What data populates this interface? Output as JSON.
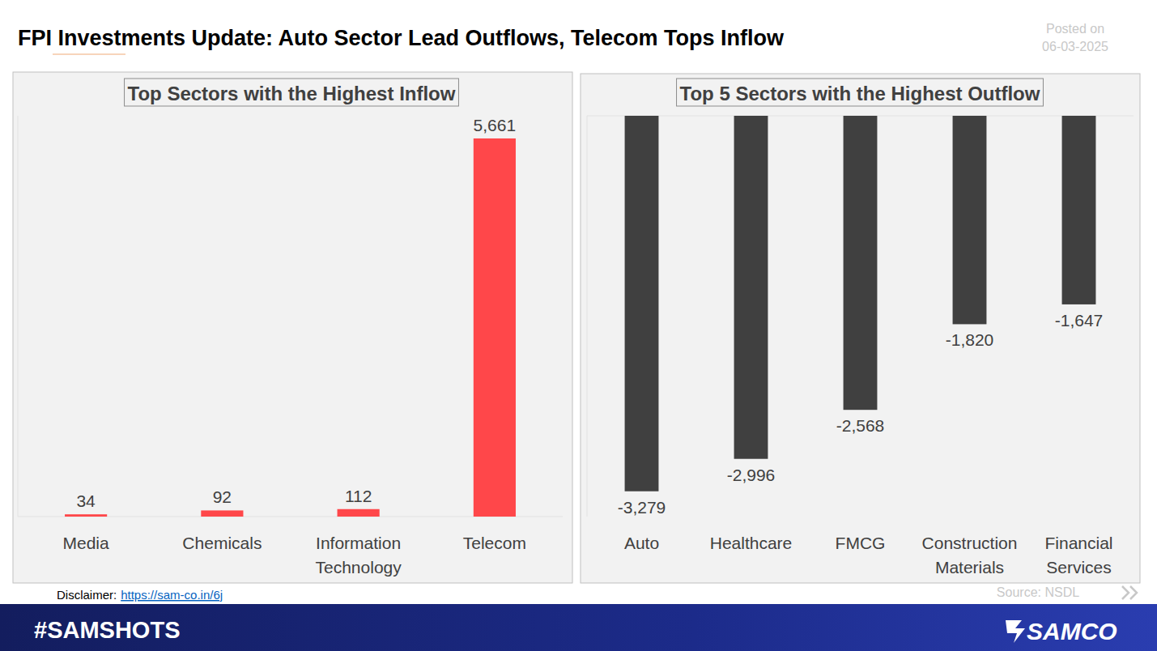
{
  "header": {
    "title": "FPI Investments Update: Auto Sector Lead Outflows, Telecom Tops Inflow",
    "posted_label": "Posted on",
    "posted_date": "06-03-2025"
  },
  "chart_data": [
    {
      "type": "bar",
      "title": "Top Sectors with the Highest Inflow",
      "categories": [
        "Media",
        "Chemicals",
        "Information Technology",
        "Telecom"
      ],
      "values": [
        34,
        92,
        112,
        5661
      ],
      "value_labels": [
        "34",
        "92",
        "112",
        "5,661"
      ],
      "color": "#ff474a",
      "ylim": [
        0,
        6000
      ],
      "data_labels": true,
      "tick_labels": "x",
      "grid": false
    },
    {
      "type": "bar",
      "title": "Top 5 Sectors with the Highest Outflow",
      "categories": [
        "Auto",
        "Healthcare",
        "FMCG",
        "Construction Materials",
        "Financial Services"
      ],
      "values": [
        -3279,
        -2996,
        -2568,
        -1820,
        -1647
      ],
      "value_labels": [
        "-3,279",
        "-2,996",
        "-2,568",
        "-1,820",
        "-1,647"
      ],
      "color": "#404040",
      "ylim": [
        -3500,
        0
      ],
      "data_labels": true,
      "tick_labels": "x",
      "grid": false
    }
  ],
  "footer": {
    "disclaimer_label": "Disclaimer:",
    "disclaimer_link": "https://sam-co.in/6j",
    "source": "Source: NSDL",
    "hashtag": "#SAMSHOTS",
    "brand": "SAMCO"
  }
}
